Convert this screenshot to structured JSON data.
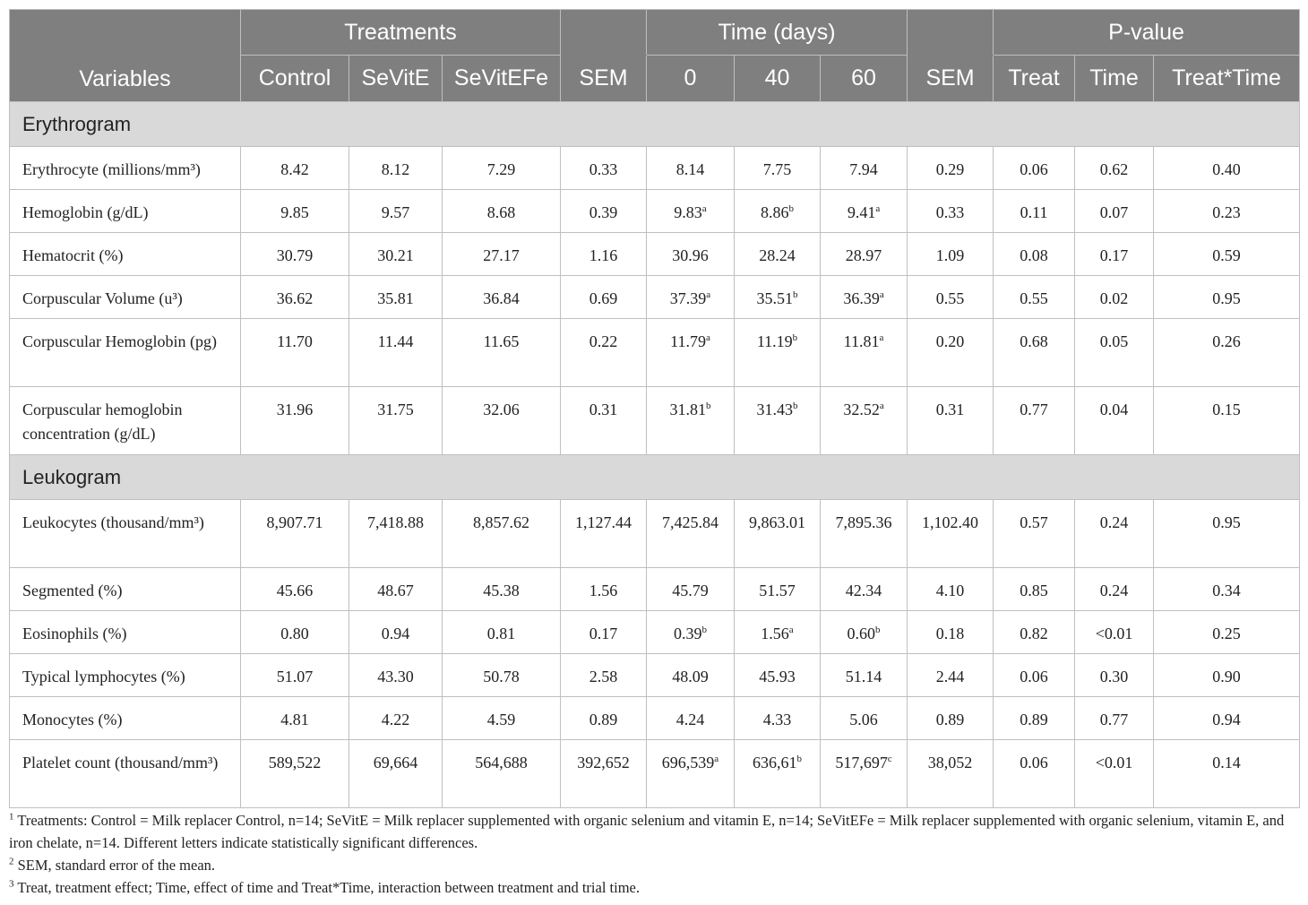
{
  "header": {
    "variables": "Variables",
    "treatments": "Treatments",
    "time": "Time (days)",
    "pvalue": "P-value",
    "cols": [
      "Control",
      "SeVitE",
      "SeVitEFe",
      "SEM",
      "0",
      "40",
      "60",
      "SEM",
      "Treat",
      "Time",
      "Treat*Time"
    ]
  },
  "sections": [
    {
      "title": "Erythrogram",
      "rows": [
        {
          "label": "Erythrocyte (millions/mm³)",
          "lines": 1,
          "cells": [
            {
              "v": "8.42"
            },
            {
              "v": "8.12"
            },
            {
              "v": "7.29"
            },
            {
              "v": "0.33"
            },
            {
              "v": "8.14"
            },
            {
              "v": "7.75"
            },
            {
              "v": "7.94"
            },
            {
              "v": "0.29"
            },
            {
              "v": "0.06"
            },
            {
              "v": "0.62"
            },
            {
              "v": "0.40"
            }
          ]
        },
        {
          "label": "Hemoglobin (g/dL)",
          "lines": 1,
          "cells": [
            {
              "v": "9.85"
            },
            {
              "v": "9.57"
            },
            {
              "v": "8.68"
            },
            {
              "v": "0.39"
            },
            {
              "v": "9.83",
              "s": "a"
            },
            {
              "v": "8.86",
              "s": "b"
            },
            {
              "v": "9.41",
              "s": "a"
            },
            {
              "v": "0.33"
            },
            {
              "v": "0.11"
            },
            {
              "v": "0.07"
            },
            {
              "v": "0.23"
            }
          ]
        },
        {
          "label": "Hematocrit (%)",
          "lines": 1,
          "cells": [
            {
              "v": "30.79"
            },
            {
              "v": "30.21"
            },
            {
              "v": "27.17"
            },
            {
              "v": "1.16"
            },
            {
              "v": "30.96"
            },
            {
              "v": "28.24"
            },
            {
              "v": "28.97"
            },
            {
              "v": "1.09"
            },
            {
              "v": "0.08"
            },
            {
              "v": "0.17"
            },
            {
              "v": "0.59"
            }
          ]
        },
        {
          "label": "Corpuscular Volume (u³)",
          "lines": 1,
          "cells": [
            {
              "v": "36.62"
            },
            {
              "v": "35.81"
            },
            {
              "v": "36.84"
            },
            {
              "v": "0.69"
            },
            {
              "v": "37.39",
              "s": "a"
            },
            {
              "v": "35.51",
              "s": "b"
            },
            {
              "v": "36.39",
              "s": "a"
            },
            {
              "v": "0.55"
            },
            {
              "v": "0.55"
            },
            {
              "v": "0.02"
            },
            {
              "v": "0.95"
            }
          ]
        },
        {
          "label": "Corpuscular Hemoglobin (pg)",
          "lines": 2,
          "cells": [
            {
              "v": "11.70"
            },
            {
              "v": "11.44"
            },
            {
              "v": "11.65"
            },
            {
              "v": "0.22"
            },
            {
              "v": "11.79",
              "s": "a"
            },
            {
              "v": "11.19",
              "s": "b"
            },
            {
              "v": "11.81",
              "s": "a"
            },
            {
              "v": "0.20"
            },
            {
              "v": "0.68"
            },
            {
              "v": "0.05"
            },
            {
              "v": "0.26"
            }
          ]
        },
        {
          "label": "Corpuscular hemoglobin concentration (g/dL)",
          "lines": 2,
          "cells": [
            {
              "v": "31.96"
            },
            {
              "v": "31.75"
            },
            {
              "v": "32.06"
            },
            {
              "v": "0.31"
            },
            {
              "v": "31.81",
              "s": "b"
            },
            {
              "v": "31.43",
              "s": "b"
            },
            {
              "v": "32.52",
              "s": "a"
            },
            {
              "v": "0.31"
            },
            {
              "v": "0.77"
            },
            {
              "v": "0.04"
            },
            {
              "v": "0.15"
            }
          ]
        }
      ]
    },
    {
      "title": "Leukogram",
      "rows": [
        {
          "label": "Leukocytes (thousand/mm³)",
          "lines": 2,
          "cells": [
            {
              "v": "8,907.71"
            },
            {
              "v": "7,418.88"
            },
            {
              "v": "8,857.62"
            },
            {
              "v": "1,127.44"
            },
            {
              "v": "7,425.84"
            },
            {
              "v": "9,863.01"
            },
            {
              "v": "7,895.36"
            },
            {
              "v": "1,102.40"
            },
            {
              "v": "0.57"
            },
            {
              "v": "0.24"
            },
            {
              "v": "0.95"
            }
          ]
        },
        {
          "label": "Segmented (%)",
          "lines": 1,
          "cells": [
            {
              "v": "45.66"
            },
            {
              "v": "48.67"
            },
            {
              "v": "45.38"
            },
            {
              "v": "1.56"
            },
            {
              "v": "45.79"
            },
            {
              "v": "51.57"
            },
            {
              "v": "42.34"
            },
            {
              "v": "4.10"
            },
            {
              "v": "0.85"
            },
            {
              "v": "0.24"
            },
            {
              "v": "0.34"
            }
          ]
        },
        {
          "label": "Eosinophils (%)",
          "lines": 1,
          "cells": [
            {
              "v": "0.80"
            },
            {
              "v": "0.94"
            },
            {
              "v": "0.81"
            },
            {
              "v": "0.17"
            },
            {
              "v": "0.39",
              "s": "b"
            },
            {
              "v": "1.56",
              "s": "a"
            },
            {
              "v": "0.60",
              "s": "b"
            },
            {
              "v": "0.18"
            },
            {
              "v": "0.82"
            },
            {
              "v": "<0.01"
            },
            {
              "v": "0.25"
            }
          ]
        },
        {
          "label": "Typical lymphocytes (%)",
          "lines": 1,
          "cells": [
            {
              "v": "51.07"
            },
            {
              "v": "43.30"
            },
            {
              "v": "50.78"
            },
            {
              "v": "2.58"
            },
            {
              "v": "48.09"
            },
            {
              "v": "45.93"
            },
            {
              "v": "51.14"
            },
            {
              "v": "2.44"
            },
            {
              "v": "0.06"
            },
            {
              "v": "0.30"
            },
            {
              "v": "0.90"
            }
          ]
        },
        {
          "label": "Monocytes (%)",
          "lines": 1,
          "cells": [
            {
              "v": "4.81"
            },
            {
              "v": "4.22"
            },
            {
              "v": "4.59"
            },
            {
              "v": "0.89"
            },
            {
              "v": "4.24"
            },
            {
              "v": "4.33"
            },
            {
              "v": "5.06"
            },
            {
              "v": "0.89"
            },
            {
              "v": "0.89"
            },
            {
              "v": "0.77"
            },
            {
              "v": "0.94"
            }
          ]
        },
        {
          "label": "Platelet count (thousand/mm³)",
          "lines": 2,
          "cells": [
            {
              "v": "589,522"
            },
            {
              "v": "69,664"
            },
            {
              "v": "564,688"
            },
            {
              "v": "392,652"
            },
            {
              "v": "696,539",
              "s": "a"
            },
            {
              "v": "636,61",
              "s": "b"
            },
            {
              "v": "517,697",
              "s": "c"
            },
            {
              "v": "38,052"
            },
            {
              "v": "0.06"
            },
            {
              "v": "<0.01"
            },
            {
              "v": "0.14"
            }
          ]
        }
      ]
    }
  ],
  "footnotes": [
    {
      "mark": "1",
      "text": " Treatments: Control = Milk replacer Control, n=14; SeVitE = Milk replacer supplemented with organic selenium and vitamin E, n=14; SeVitEFe = Milk replacer supplemented with organic selenium, vitamin E, and iron chelate, n=14. Different letters indicate statistically significant differences."
    },
    {
      "mark": "2",
      "text": " SEM, standard error of the mean."
    },
    {
      "mark": "3",
      "text": " Treat, treatment effect; Time, effect of time and Treat*Time, interaction between treatment and trial time."
    }
  ]
}
